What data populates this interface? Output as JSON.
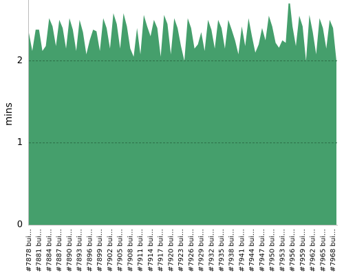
{
  "chart_data": {
    "type": "area",
    "y_label": "mins",
    "color": "#459f6c",
    "grid": true,
    "ylim": [
      0,
      2.7
    ],
    "yticks": [
      0,
      1,
      2
    ],
    "categories": [
      "#7878 bui…",
      null,
      null,
      "#7881 bui…",
      null,
      null,
      "#7884 bui…",
      null,
      null,
      "#7887 bui…",
      null,
      null,
      "#7890 bui…",
      null,
      null,
      "#7893 bui…",
      null,
      null,
      "#7896 bui…",
      null,
      null,
      "#7899 bui…",
      null,
      null,
      "#7902 bui…",
      null,
      null,
      "#7905 bui…",
      null,
      null,
      "#7908 bui…",
      null,
      null,
      "#7911 bui…",
      null,
      null,
      "#7914 bui…",
      null,
      null,
      "#7917 bui…",
      null,
      null,
      "#7920 bui…",
      null,
      null,
      "#7923 bui…",
      null,
      null,
      "#7926 bui…",
      null,
      null,
      "#7929 bui…",
      null,
      null,
      "#7932 bui…",
      null,
      null,
      "#7935 bui…",
      null,
      null,
      "#7938 bui…",
      null,
      null,
      "#7941 bui…",
      null,
      null,
      "#7944 bui…",
      null,
      null,
      "#7947 bui…",
      null,
      null,
      "#7950 bui…",
      null,
      null,
      "#7953 bui…",
      null,
      null,
      "#7956 bui…",
      null,
      null,
      "#7959 bui…",
      null,
      null,
      "#7962 bui…",
      null,
      null,
      "#7965 bui…",
      null,
      null,
      "#7968 bui…",
      null
    ],
    "values": [
      2.34,
      2.12,
      2.38,
      2.38,
      2.12,
      2.18,
      2.52,
      2.42,
      2.18,
      2.5,
      2.4,
      2.15,
      2.52,
      2.38,
      2.12,
      2.5,
      2.35,
      2.08,
      2.25,
      2.38,
      2.36,
      2.12,
      2.52,
      2.4,
      2.15,
      2.58,
      2.45,
      2.15,
      2.58,
      2.42,
      2.15,
      2.05,
      2.4,
      2.08,
      2.56,
      2.42,
      2.3,
      2.5,
      2.4,
      2.05,
      2.56,
      2.45,
      2.08,
      2.52,
      2.4,
      2.18,
      2.0,
      2.52,
      2.4,
      2.15,
      2.2,
      2.35,
      2.12,
      2.5,
      2.38,
      2.15,
      2.5,
      2.4,
      2.15,
      2.5,
      2.38,
      2.25,
      2.08,
      2.42,
      2.18,
      2.52,
      2.3,
      2.1,
      2.2,
      2.4,
      2.25,
      2.55,
      2.42,
      2.22,
      2.16,
      2.25,
      2.22,
      2.8,
      2.42,
      2.18,
      2.55,
      2.42,
      2.0,
      2.56,
      2.35,
      2.08,
      2.52,
      2.4,
      2.15,
      2.5,
      2.4,
      2.0
    ]
  }
}
